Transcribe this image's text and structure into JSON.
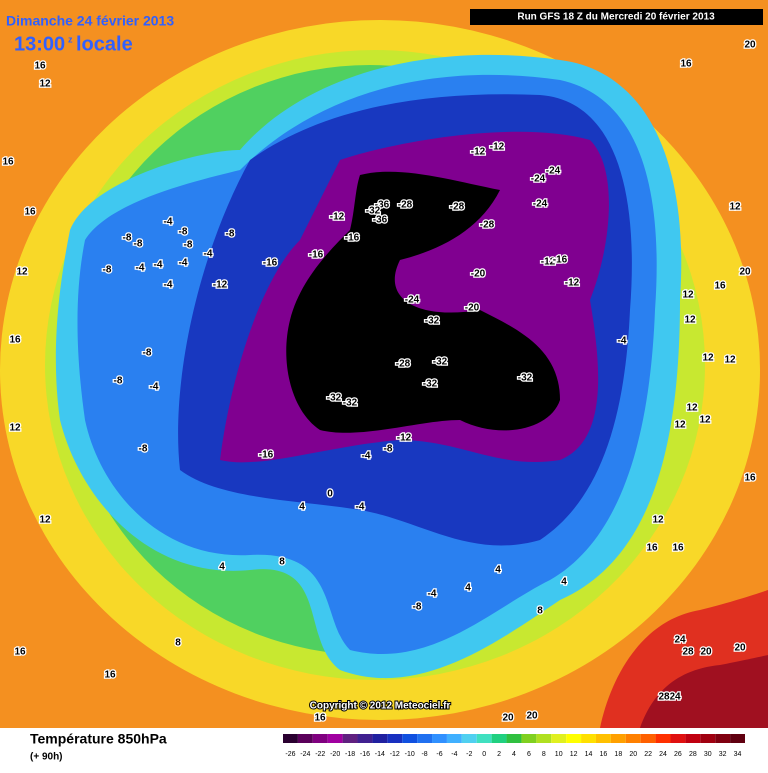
{
  "header": {
    "date": "Dimanche 24 février 2013",
    "time": "13:00",
    "time_suffix": "z",
    "time_note": "locale",
    "run": "Run GFS 18 Z du Mercredi 20 février 2013"
  },
  "copyright": "Copyright © 2012 Meteociel.fr",
  "footer": {
    "title": "Température 850hPa",
    "subtitle": "(+ 90h)"
  },
  "colorbar": {
    "ticks": [
      -26,
      -24,
      -22,
      -20,
      -18,
      -16,
      -14,
      -12,
      -10,
      -8,
      -6,
      -4,
      -2,
      0,
      2,
      4,
      6,
      8,
      10,
      12,
      14,
      16,
      18,
      20,
      22,
      24,
      26,
      28,
      30,
      32,
      34
    ],
    "colors": [
      "#2a0030",
      "#5a005a",
      "#800080",
      "#a000a0",
      "#602080",
      "#402090",
      "#2020a0",
      "#1830c0",
      "#1050e0",
      "#2070f0",
      "#3090ff",
      "#40b0ff",
      "#50d0f0",
      "#40e0c0",
      "#20d080",
      "#30c040",
      "#80d020",
      "#b0e020",
      "#e0f020",
      "#ffff00",
      "#ffe000",
      "#ffc000",
      "#ffa000",
      "#ff8000",
      "#ff6000",
      "#ff3000",
      "#e01010",
      "#c00010",
      "#a00010",
      "#800010",
      "#600010"
    ]
  },
  "map_labels": [
    16,
    12,
    16,
    16,
    12,
    16,
    12,
    12,
    16,
    16,
    16,
    20,
    20,
    20,
    16,
    12,
    20,
    16,
    12,
    12,
    12,
    12,
    12,
    12,
    12,
    16,
    12,
    16,
    16,
    24,
    20,
    28,
    20,
    24,
    28,
    -12,
    -12,
    -24,
    -24,
    -24,
    -36,
    -36,
    -32,
    -28,
    -28,
    -28,
    -12,
    -16,
    -16,
    -16,
    -20,
    -20,
    -24,
    -32,
    -28,
    -32,
    -32,
    -32,
    -32,
    -32,
    -12,
    -16,
    -12,
    -12,
    -8,
    -4,
    -8,
    -8,
    -8,
    -8,
    -4,
    -4,
    -4,
    -8,
    -4,
    -4,
    -8,
    -8,
    -4,
    -8,
    -16,
    -12,
    -8,
    -4,
    0,
    -4,
    4,
    4,
    8,
    8,
    4,
    4,
    8,
    -4,
    -8,
    -4,
    4
  ]
}
